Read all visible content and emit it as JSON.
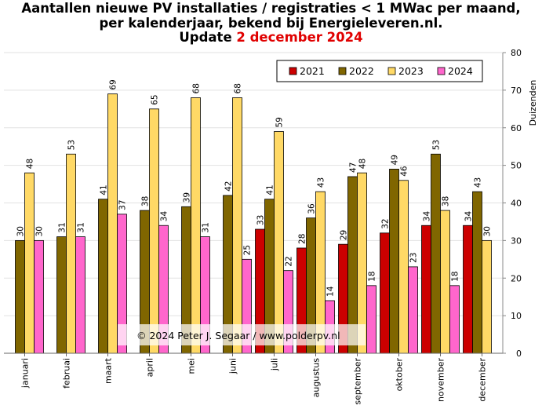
{
  "title": {
    "line1": "Aantallen nieuwe PV installaties / registraties < 1 MWac per maand,",
    "line2": "per kalenderjaar, bekend bij Energieleveren.nl.",
    "line3_prefix": "Update ",
    "line3_date": "2 december 2024"
  },
  "credit": "© 2024 Peter J. Segaar / www.polderpv.nl",
  "chart_data": {
    "type": "bar",
    "categories": [
      "januari",
      "februai",
      "maart",
      "april",
      "mei",
      "juni",
      "juli",
      "augustus",
      "september",
      "oktober",
      "november",
      "december"
    ],
    "series": [
      {
        "name": "2021",
        "color": "#cc0000",
        "values": [
          null,
          null,
          null,
          null,
          null,
          null,
          33,
          28,
          29,
          32,
          34,
          34
        ]
      },
      {
        "name": "2022",
        "color": "#806600",
        "values": [
          30,
          31,
          41,
          38,
          39,
          42,
          41,
          36,
          47,
          49,
          53,
          43
        ]
      },
      {
        "name": "2023",
        "color": "#ffd966",
        "values": [
          48,
          53,
          69,
          65,
          68,
          68,
          59,
          43,
          48,
          46,
          38,
          30
        ]
      },
      {
        "name": "2024",
        "color": "#ff66cc",
        "values": [
          30,
          31,
          37,
          34,
          31,
          25,
          22,
          14,
          18,
          23,
          18,
          null
        ]
      }
    ],
    "ylabel": "Duizenden",
    "ylim": [
      0,
      80
    ],
    "yticks": [
      0,
      10,
      20,
      30,
      40,
      50,
      60,
      70,
      80
    ],
    "grid": true,
    "legend_position": "top-right",
    "y_axis_side": "right"
  }
}
